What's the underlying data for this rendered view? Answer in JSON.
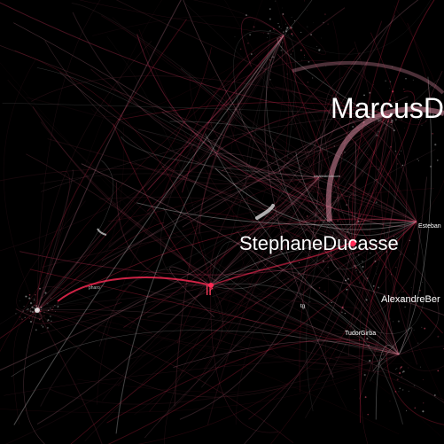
{
  "graph": {
    "background": "#000000",
    "edge_palette": [
      "#ff2a55",
      "#e83a66",
      "#c9566f",
      "#ffffff",
      "#d98aa0",
      "#8a3046"
    ],
    "labels": [
      {
        "id": "marcus",
        "text": "MarcusD",
        "tier": "xl"
      },
      {
        "id": "stephane",
        "text": "StephaneDucasse",
        "tier": "lg"
      },
      {
        "id": "lr",
        "text": "lr",
        "tier": "md-hot"
      },
      {
        "id": "alexandre",
        "text": "AlexandreBer",
        "tier": "sm"
      },
      {
        "id": "esteban",
        "text": "Esteban",
        "tier": "xs"
      },
      {
        "id": "tudor",
        "text": "TudorGirba",
        "tier": "xs"
      },
      {
        "id": "tg",
        "text": "tg",
        "tier": "xxs"
      },
      {
        "id": "pharo",
        "text": "pharo",
        "tier": "xxs"
      },
      {
        "id": "smalltalk",
        "text": "smalltalkhubcom",
        "tier": "tiny"
      }
    ]
  }
}
